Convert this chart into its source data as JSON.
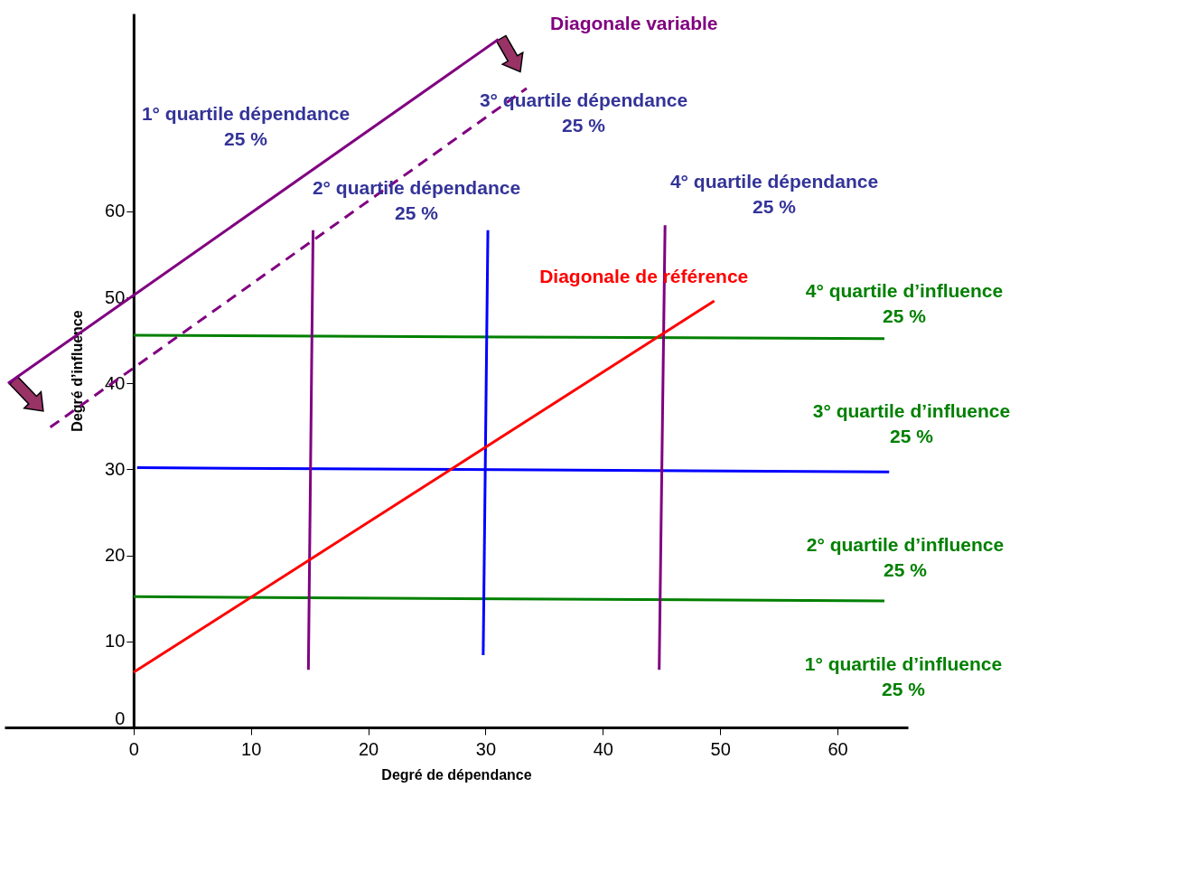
{
  "chart_data": {
    "type": "line",
    "xlabel": "Degré de dépendance",
    "ylabel": "Degré d’influence",
    "xlim": [
      -11,
      66
    ],
    "ylim": [
      0,
      83
    ],
    "xticks": [
      0,
      10,
      20,
      30,
      40,
      50,
      60
    ],
    "yticks": [
      0,
      10,
      20,
      30,
      40,
      50,
      60
    ],
    "grid": false,
    "marker": "none",
    "series": [
      {
        "color": "#008000",
        "x": [
          0,
          64
        ],
        "values": [
          45.6,
          45.2
        ]
      },
      {
        "color": "#0000ff",
        "x": [
          0.3,
          64.4
        ],
        "values": [
          30.2,
          29.7
        ]
      },
      {
        "color": "#008000",
        "x": [
          0,
          64
        ],
        "values": [
          15.2,
          14.7
        ]
      },
      {
        "color": "#800080",
        "x": [
          15.3,
          14.9
        ],
        "values": [
          57.8,
          6.7
        ]
      },
      {
        "color": "#0000ff",
        "x": [
          30.2,
          29.8
        ],
        "values": [
          57.8,
          8.4
        ]
      },
      {
        "color": "#800080",
        "x": [
          45.3,
          44.8
        ],
        "values": [
          58.4,
          6.7
        ]
      },
      {
        "name": "Diagonale de référence",
        "color": "#ff0000",
        "x": [
          0,
          49.5
        ],
        "values": [
          6.4,
          49.6
        ]
      },
      {
        "name": "Diagonale variable",
        "color": "#800080",
        "x": [
          -10.7,
          31.1
        ],
        "values": [
          40,
          80
        ]
      },
      {
        "color": "#800080",
        "line_style": "dashed",
        "x": [
          -7.1,
          33.5
        ],
        "values": [
          34.9,
          74.3
        ]
      }
    ],
    "annotations": [
      "1° quartile dépendance\n25 %",
      "3° quartile dépendance\n25 %",
      "2° quartile dépendance\n25 %",
      "4° quartile dépendance\n25 %",
      "4° quartile d’influence\n25 %",
      "3° quartile d’influence\n25 %",
      "2° quartile d’influence\n25 %",
      "1° quartile d’influence\n25 %"
    ]
  }
}
